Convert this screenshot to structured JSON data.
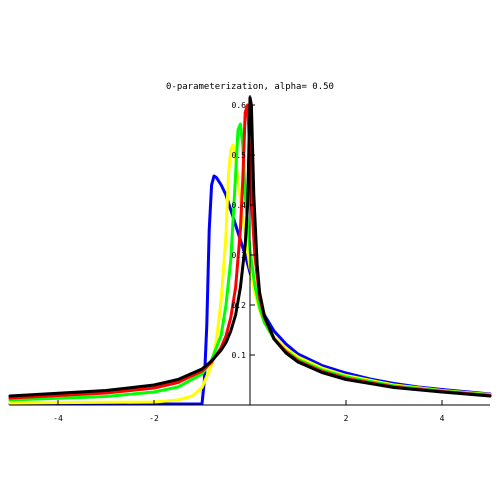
{
  "chart_data": {
    "type": "line",
    "title": "0-parameterization, alpha=  0.50",
    "xlabel": "",
    "ylabel": "",
    "xlim": [
      -5,
      5
    ],
    "ylim": [
      0,
      0.62
    ],
    "x_ticks": [
      {
        "value": -4,
        "label": "-4"
      },
      {
        "value": -2,
        "label": "-2"
      },
      {
        "value": 2,
        "label": "2"
      },
      {
        "value": 4,
        "label": "4"
      }
    ],
    "y_ticks": [
      {
        "value": 0.1,
        "label": "0.1"
      },
      {
        "value": 0.2,
        "label": "0.2"
      },
      {
        "value": 0.3,
        "label": "0.3"
      },
      {
        "value": 0.4,
        "label": "0.4"
      },
      {
        "value": 0.5,
        "label": "0.5"
      },
      {
        "value": 0.6,
        "label": "0.6"
      }
    ],
    "grid": false,
    "legend": "none",
    "series": [
      {
        "color": "#0000ff",
        "points": [
          [
            -5,
            0.002
          ],
          [
            -1.0,
            0.002
          ],
          [
            -0.95,
            0.05
          ],
          [
            -0.9,
            0.16
          ],
          [
            -0.85,
            0.35
          ],
          [
            -0.8,
            0.44
          ],
          [
            -0.75,
            0.458
          ],
          [
            -0.7,
            0.455
          ],
          [
            -0.6,
            0.44
          ],
          [
            -0.5,
            0.42
          ],
          [
            -0.4,
            0.39
          ],
          [
            -0.3,
            0.36
          ],
          [
            -0.2,
            0.33
          ],
          [
            -0.1,
            0.3
          ],
          [
            0,
            0.265
          ],
          [
            0.1,
            0.235
          ],
          [
            0.2,
            0.205
          ],
          [
            0.3,
            0.18
          ],
          [
            0.5,
            0.148
          ],
          [
            0.75,
            0.122
          ],
          [
            1,
            0.102
          ],
          [
            1.5,
            0.079
          ],
          [
            2,
            0.064
          ],
          [
            2.5,
            0.052
          ],
          [
            3,
            0.043
          ],
          [
            3.5,
            0.036
          ],
          [
            4,
            0.031
          ],
          [
            5,
            0.022
          ]
        ]
      },
      {
        "color": "#ffff00",
        "points": [
          [
            -5,
            0.004
          ],
          [
            -2,
            0.006
          ],
          [
            -1.5,
            0.01
          ],
          [
            -1.2,
            0.018
          ],
          [
            -1.0,
            0.035
          ],
          [
            -0.8,
            0.08
          ],
          [
            -0.7,
            0.13
          ],
          [
            -0.6,
            0.21
          ],
          [
            -0.5,
            0.34
          ],
          [
            -0.45,
            0.46
          ],
          [
            -0.4,
            0.51
          ],
          [
            -0.35,
            0.52
          ],
          [
            -0.3,
            0.49
          ],
          [
            -0.2,
            0.41
          ],
          [
            -0.1,
            0.34
          ],
          [
            0,
            0.275
          ],
          [
            0.1,
            0.225
          ],
          [
            0.2,
            0.19
          ],
          [
            0.3,
            0.165
          ],
          [
            0.5,
            0.136
          ],
          [
            0.75,
            0.113
          ],
          [
            1,
            0.096
          ],
          [
            1.5,
            0.074
          ],
          [
            2,
            0.059
          ],
          [
            3,
            0.04
          ],
          [
            4,
            0.029
          ],
          [
            5,
            0.021
          ]
        ]
      },
      {
        "color": "#00ff00",
        "points": [
          [
            -5,
            0.01
          ],
          [
            -3,
            0.017
          ],
          [
            -2,
            0.026
          ],
          [
            -1.5,
            0.036
          ],
          [
            -1.0,
            0.062
          ],
          [
            -0.8,
            0.09
          ],
          [
            -0.6,
            0.14
          ],
          [
            -0.5,
            0.2
          ],
          [
            -0.4,
            0.29
          ],
          [
            -0.3,
            0.46
          ],
          [
            -0.25,
            0.55
          ],
          [
            -0.2,
            0.562
          ],
          [
            -0.15,
            0.52
          ],
          [
            -0.1,
            0.42
          ],
          [
            0,
            0.31
          ],
          [
            0.1,
            0.24
          ],
          [
            0.2,
            0.195
          ],
          [
            0.3,
            0.165
          ],
          [
            0.5,
            0.132
          ],
          [
            0.75,
            0.108
          ],
          [
            1,
            0.091
          ],
          [
            1.5,
            0.07
          ],
          [
            2,
            0.056
          ],
          [
            3,
            0.038
          ],
          [
            4,
            0.028
          ],
          [
            5,
            0.02
          ]
        ]
      },
      {
        "color": "#ff0000",
        "points": [
          [
            -5,
            0.014
          ],
          [
            -3,
            0.024
          ],
          [
            -2,
            0.034
          ],
          [
            -1.5,
            0.045
          ],
          [
            -1.0,
            0.068
          ],
          [
            -0.8,
            0.086
          ],
          [
            -0.6,
            0.115
          ],
          [
            -0.5,
            0.138
          ],
          [
            -0.4,
            0.175
          ],
          [
            -0.3,
            0.235
          ],
          [
            -0.2,
            0.35
          ],
          [
            -0.15,
            0.45
          ],
          [
            -0.1,
            0.585
          ],
          [
            -0.05,
            0.6
          ],
          [
            0,
            0.5
          ],
          [
            0.05,
            0.38
          ],
          [
            0.1,
            0.3
          ],
          [
            0.2,
            0.215
          ],
          [
            0.3,
            0.175
          ],
          [
            0.5,
            0.133
          ],
          [
            0.75,
            0.106
          ],
          [
            1,
            0.088
          ],
          [
            1.5,
            0.067
          ],
          [
            2,
            0.053
          ],
          [
            3,
            0.036
          ],
          [
            4,
            0.027
          ],
          [
            5,
            0.019
          ]
        ]
      },
      {
        "color": "#000000",
        "points": [
          [
            -5,
            0.018
          ],
          [
            -3,
            0.029
          ],
          [
            -2,
            0.04
          ],
          [
            -1.5,
            0.051
          ],
          [
            -1.0,
            0.072
          ],
          [
            -0.8,
            0.088
          ],
          [
            -0.6,
            0.11
          ],
          [
            -0.5,
            0.125
          ],
          [
            -0.4,
            0.148
          ],
          [
            -0.3,
            0.18
          ],
          [
            -0.2,
            0.235
          ],
          [
            -0.1,
            0.32
          ],
          [
            -0.05,
            0.4
          ],
          [
            0,
            0.615
          ],
          [
            0.03,
            0.6
          ],
          [
            0.08,
            0.42
          ],
          [
            0.15,
            0.28
          ],
          [
            0.2,
            0.225
          ],
          [
            0.3,
            0.178
          ],
          [
            0.5,
            0.132
          ],
          [
            0.75,
            0.104
          ],
          [
            1,
            0.086
          ],
          [
            1.5,
            0.065
          ],
          [
            2,
            0.051
          ],
          [
            3,
            0.035
          ],
          [
            4,
            0.026
          ],
          [
            5,
            0.018
          ]
        ]
      }
    ]
  }
}
